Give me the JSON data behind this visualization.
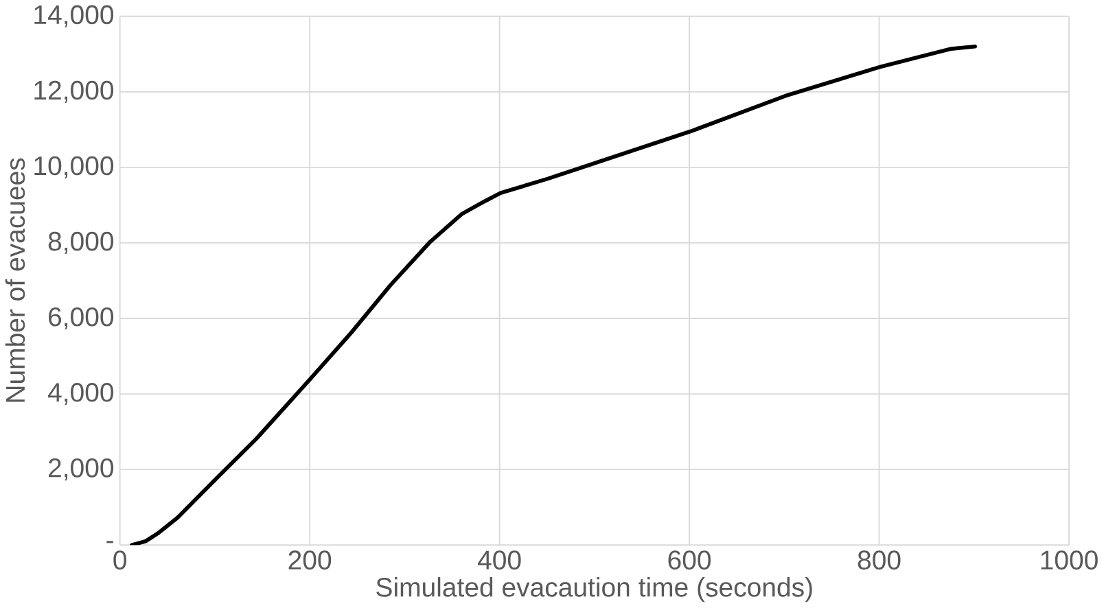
{
  "chart_data": {
    "type": "line",
    "xlabel": "Simulated evacaution time (seconds)",
    "ylabel": "Number of evacuees",
    "x": [
      12.5,
      27,
      40,
      61,
      102,
      144,
      200,
      244,
      285,
      327,
      360,
      385,
      401,
      451,
      601,
      701,
      801,
      876,
      901
    ],
    "series": [
      {
        "color": "#000000",
        "values": [
          0,
          100,
          310,
          730,
          1770,
          2820,
          4380,
          5630,
          6880,
          8030,
          8760,
          9110,
          9320,
          9700,
          10950,
          11890,
          12660,
          13140,
          13200
        ]
      }
    ],
    "xlim": [
      0,
      1000
    ],
    "ylim": [
      0,
      14000
    ],
    "xticks": [
      0,
      200,
      400,
      600,
      800,
      1000
    ],
    "yticks": [
      {
        "value": 0,
        "label": "-"
      },
      {
        "value": 2000,
        "label": "2,000"
      },
      {
        "value": 4000,
        "label": "4,000"
      },
      {
        "value": 6000,
        "label": "6,000"
      },
      {
        "value": 8000,
        "label": "8,000"
      },
      {
        "value": 10000,
        "label": "10,000"
      },
      {
        "value": 12000,
        "label": "12,000"
      },
      {
        "value": 14000,
        "label": "14,000"
      }
    ],
    "grid": true,
    "marker": "none",
    "line_style": "solid"
  }
}
